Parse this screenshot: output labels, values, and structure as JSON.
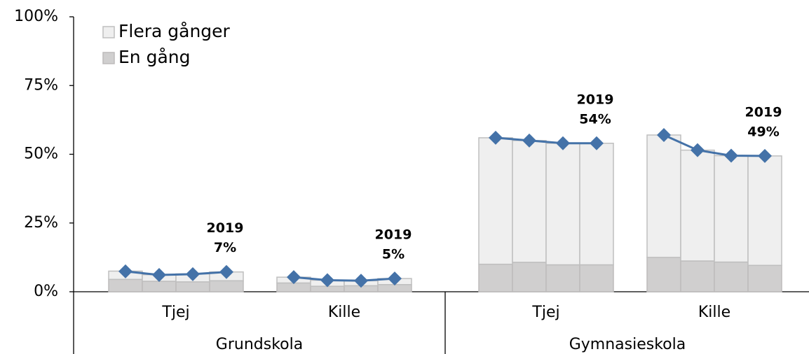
{
  "chart_data": {
    "type": "stacked_bar_line",
    "categories": [
      null,
      null,
      null,
      null,
      null,
      null,
      null,
      null,
      null,
      null,
      null,
      null,
      null,
      null,
      null,
      null
    ],
    "group_labels": [
      "Tjej",
      "Kille",
      "Tjej",
      "Kille"
    ],
    "super_group_labels": [
      "Grundskola",
      "Gymnasieskola"
    ],
    "series": [
      {
        "name": "En gång",
        "color": "#d0cfcf",
        "border": "#bdbcbc",
        "values": [
          4.5,
          3.8,
          3.6,
          4.0,
          3.2,
          2.0,
          2.2,
          2.6,
          10,
          10.7,
          9.8,
          9.8,
          12.5,
          11.2,
          10.8,
          9.6
        ]
      },
      {
        "name": "Flera gånger",
        "color": "#efefef",
        "border": "#bfbfbf",
        "values": [
          3.0,
          2.4,
          2.9,
          3.2,
          2.1,
          2.2,
          1.8,
          2.2,
          46,
          44.3,
          44.2,
          44.2,
          44.5,
          40.3,
          38.7,
          39.8
        ]
      },
      {
        "type": "line",
        "color": "#4472a8",
        "values": [
          7.4,
          6.1,
          6.4,
          7.2,
          5.3,
          4.2,
          4.0,
          4.8,
          56,
          55,
          54,
          54,
          57,
          51.5,
          49.5,
          49.4
        ],
        "value_labels": [
          null,
          null,
          null,
          "7%",
          null,
          null,
          null,
          "5%",
          null,
          null,
          null,
          "54%",
          null,
          null,
          null,
          "49%"
        ]
      }
    ],
    "annotations": [
      null,
      null,
      null,
      "2019",
      null,
      null,
      null,
      "2019",
      null,
      null,
      null,
      "2019",
      null,
      null,
      null,
      "2019"
    ],
    "ylim": [
      0,
      100
    ],
    "yticks": [
      {
        "value": 0,
        "label": "0%"
      },
      {
        "value": 25,
        "label": "25%"
      },
      {
        "value": 50,
        "label": "50%"
      },
      {
        "value": 75,
        "label": "75%"
      },
      {
        "value": 100,
        "label": "100%"
      }
    ],
    "legend": "top-left"
  }
}
